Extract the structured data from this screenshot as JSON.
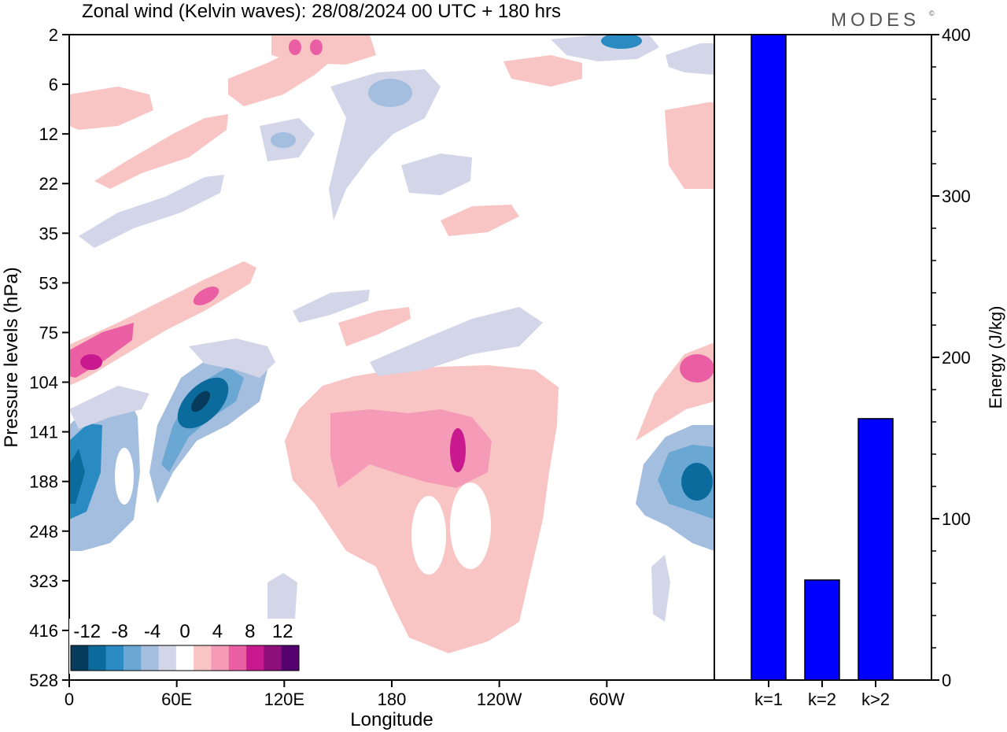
{
  "title": "Zonal wind (Kelvin waves):  28/08/2024  00 UTC  + 180 hrs",
  "brand": "MODES",
  "brand_mark": "©",
  "chart_data": [
    {
      "type": "heatmap",
      "title": "Zonal wind (Kelvin waves):  28/08/2024  00 UTC  + 180 hrs",
      "xlabel": "Longitude",
      "ylabel": "Pressure levels (hPa)",
      "x_tick_labels": [
        "0",
        "60E",
        "120E",
        "180",
        "120W",
        "60W"
      ],
      "x_ticks_deg": [
        0,
        60,
        120,
        180,
        240,
        300
      ],
      "xlim_deg": [
        0,
        360
      ],
      "y_tick_labels": [
        "2",
        "6",
        "12",
        "22",
        "35",
        "53",
        "75",
        "104",
        "141",
        "188",
        "248",
        "323",
        "416",
        "528"
      ],
      "y_scale": "model levels (nonlinear)",
      "colorbar": {
        "labels": [
          "-12",
          "-8",
          "-4",
          "0",
          "4",
          "8",
          "12"
        ],
        "levels": [
          -14,
          -12,
          -10,
          -8,
          -6,
          -4,
          -2,
          2,
          4,
          6,
          8,
          10,
          12,
          14
        ],
        "colors": [
          "#073b5c",
          "#0b6b9c",
          "#2a8bc3",
          "#6aa7d2",
          "#a4bedf",
          "#d3d5e8",
          "#ffffff",
          "#f8c5c4",
          "#f59ab7",
          "#ea5fa4",
          "#c81a8e",
          "#8e0f7a",
          "#54006e"
        ]
      },
      "features": [
        {
          "label": "easterly max",
          "x_deg": 4,
          "p_hpa": 188,
          "value": -10
        },
        {
          "label": "easterly max",
          "x_deg": 73,
          "p_hpa": 112,
          "value": -13
        },
        {
          "label": "easterly max",
          "x_deg": 355,
          "p_hpa": 188,
          "value": -12
        },
        {
          "label": "westerly max",
          "x_deg": 215,
          "p_hpa": 165,
          "value": 8
        },
        {
          "label": "westerly max",
          "x_deg": 12,
          "p_hpa": 95,
          "value": 8
        },
        {
          "label": "westerly max",
          "x_deg": 132,
          "p_hpa": 3,
          "value": 8
        },
        {
          "label": "westerly region",
          "x_deg": 210,
          "p_hpa": 260,
          "value": 2
        }
      ]
    },
    {
      "type": "bar",
      "categories": [
        "k=1",
        "k=2",
        "k>2"
      ],
      "values": [
        400,
        62,
        162
      ],
      "ylabel": "Energy (J/kg)",
      "ylim": [
        0,
        400
      ],
      "y_tick_labels": [
        "0",
        "100",
        "200",
        "300",
        "400"
      ],
      "bar_color": "#0000ff"
    }
  ]
}
